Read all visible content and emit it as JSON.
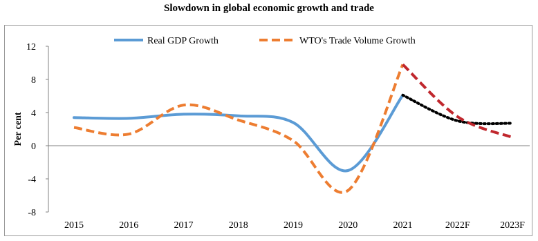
{
  "chart_data": {
    "type": "line",
    "title": "Slowdown in global economic growth and trade",
    "ylabel": "Per cent",
    "xlabel": "",
    "categories": [
      "2015",
      "2016",
      "2017",
      "2018",
      "2019",
      "2020",
      "2021",
      "2022F",
      "2023F"
    ],
    "yticks": [
      12,
      8,
      4,
      0,
      -4,
      -8
    ],
    "ylim": [
      -8,
      12
    ],
    "legend_position": "top",
    "series": [
      {
        "name": "Real GDP Growth",
        "values": [
          3.4,
          3.3,
          3.8,
          3.6,
          2.8,
          -3.0,
          6.1,
          3.0,
          2.7
        ],
        "color": "#5b9bd5",
        "style": "solid",
        "forecast_color": "#000000",
        "forecast_style": "dotted"
      },
      {
        "name": "WTO's Trade Volume Growth",
        "values": [
          2.2,
          1.4,
          4.9,
          3.1,
          0.6,
          -5.4,
          9.8,
          3.5,
          1.0
        ],
        "color": "#ed7d31",
        "style": "dashed",
        "forecast_color": "#c0272d",
        "forecast_style": "dashed"
      }
    ],
    "forecast_from_index": 6,
    "grid": false
  }
}
